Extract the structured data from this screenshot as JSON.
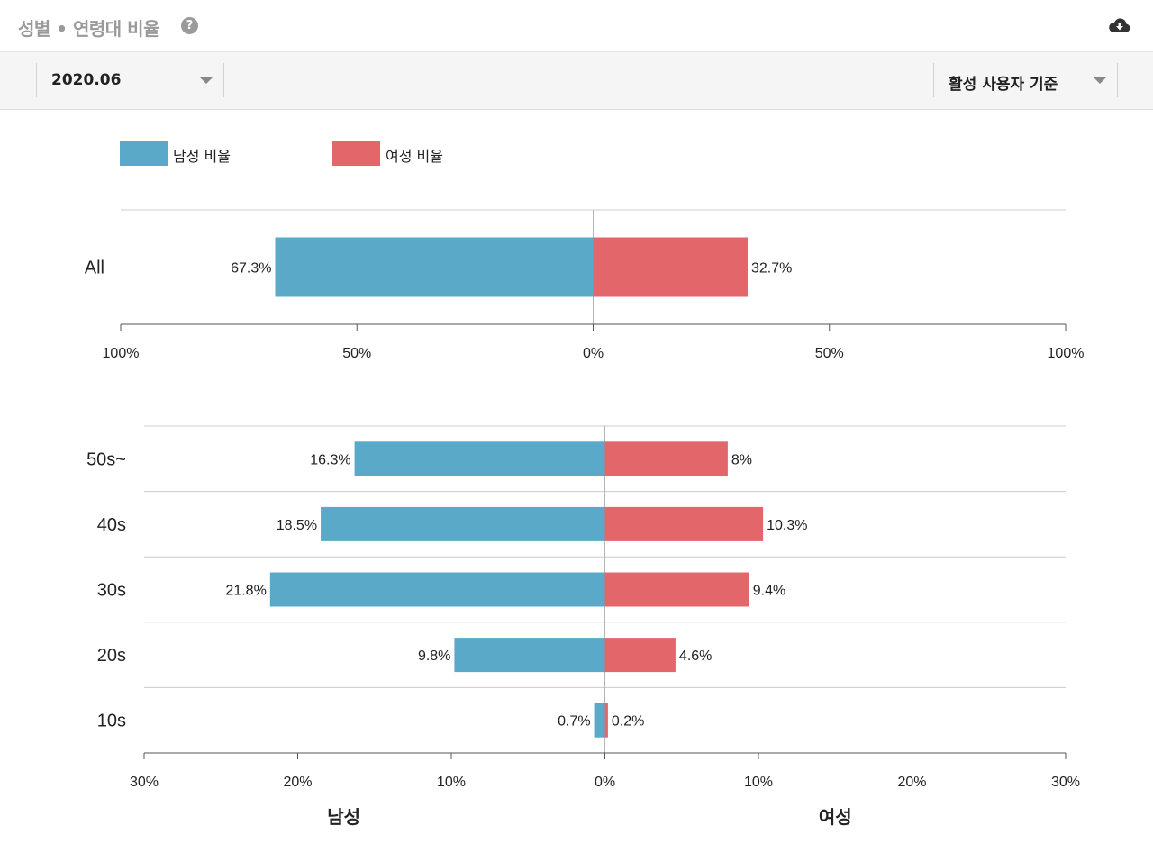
{
  "header": {
    "title": "성별 • 연령대 비율",
    "help_icon": "question-circle-icon",
    "download_icon": "cloud-download-icon"
  },
  "toolbar": {
    "period_selected": "2020.06",
    "basis_selected": "활성 사용자 기준"
  },
  "legend": [
    {
      "label": "남성 비율",
      "color": "#5aa9c9"
    },
    {
      "label": "여성 비율",
      "color": "#e3666b"
    }
  ],
  "colors": {
    "male": "#5aa9c9",
    "female": "#e3666b"
  },
  "chart_data": [
    {
      "type": "bar",
      "orientation": "horizontal-diverging",
      "categories": [
        "All"
      ],
      "series": [
        {
          "name": "남성 비율",
          "values": [
            67.3
          ],
          "labels": [
            "67.3%"
          ]
        },
        {
          "name": "여성 비율",
          "values": [
            32.7
          ],
          "labels": [
            "32.7%"
          ]
        }
      ],
      "xlim": [
        -100,
        100
      ],
      "ticks": [
        -100,
        -50,
        0,
        50,
        100
      ],
      "tick_labels": [
        "100%",
        "50%",
        "0%",
        "50%",
        "100%"
      ],
      "grid": true
    },
    {
      "type": "bar",
      "orientation": "horizontal-diverging",
      "categories": [
        "50s~",
        "40s",
        "30s",
        "20s",
        "10s"
      ],
      "series": [
        {
          "name": "남성 비율",
          "values": [
            16.3,
            18.5,
            21.8,
            9.8,
            0.7
          ],
          "labels": [
            "16.3%",
            "18.5%",
            "21.8%",
            "9.8%",
            "0.7%"
          ]
        },
        {
          "name": "여성 비율",
          "values": [
            8,
            10.3,
            9.4,
            4.6,
            0.2
          ],
          "labels": [
            "8%",
            "10.3%",
            "9.4%",
            "4.6%",
            "0.2%"
          ]
        }
      ],
      "xlim": [
        -30,
        30
      ],
      "ticks": [
        -30,
        -20,
        -10,
        0,
        10,
        20,
        30
      ],
      "tick_labels": [
        "30%",
        "20%",
        "10%",
        "0%",
        "10%",
        "20%",
        "30%"
      ],
      "xlabel_left": "남성",
      "xlabel_right": "여성",
      "grid": true
    }
  ]
}
